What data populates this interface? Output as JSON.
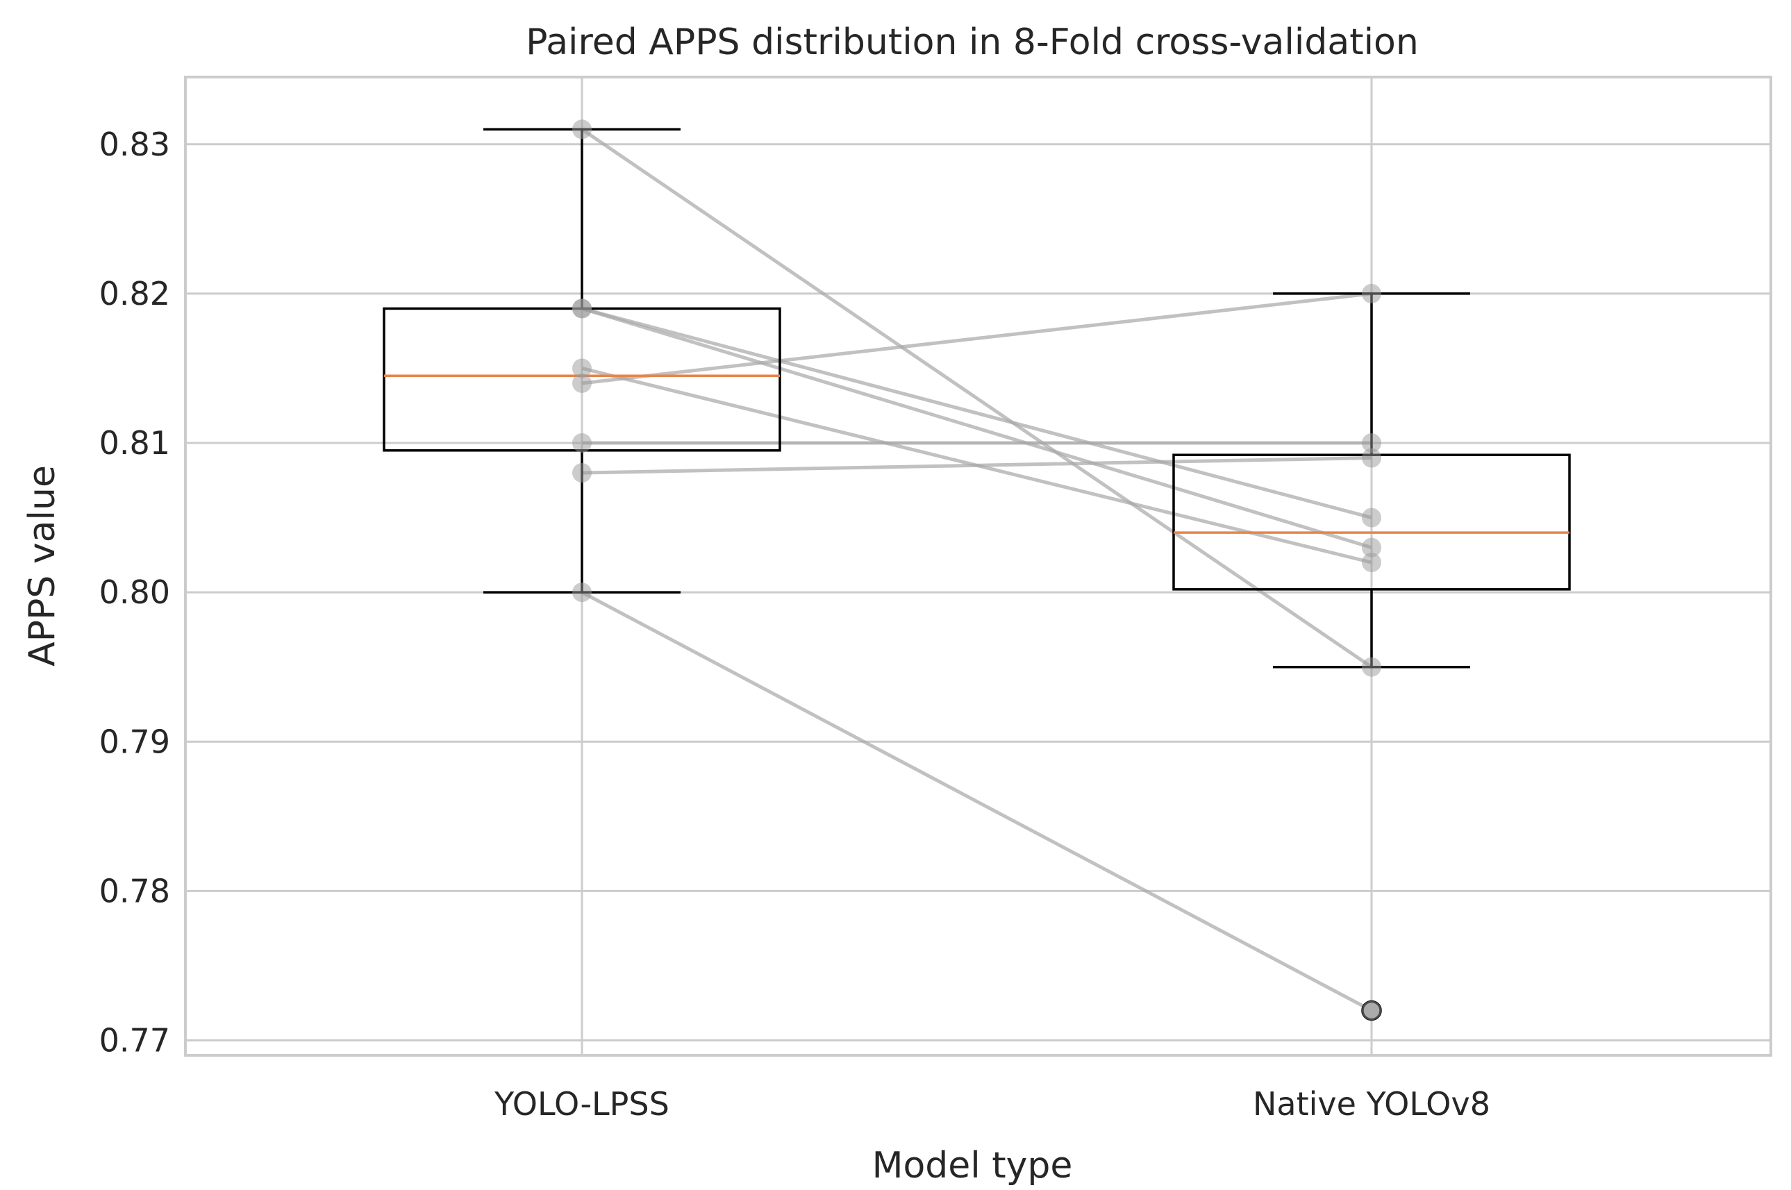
{
  "chart_data": {
    "type": "boxplot",
    "title": "Paired APPS distribution in 8-Fold cross-validation",
    "xlabel": "Model type",
    "ylabel": "APPS value",
    "categories": [
      "YOLO-LPSS",
      "Native YOLOv8"
    ],
    "ylim": [
      0.769,
      0.8345
    ],
    "yticks": [
      0.77,
      0.78,
      0.79,
      0.8,
      0.81,
      0.82,
      0.83
    ],
    "ytick_labels": [
      "0.77",
      "0.78",
      "0.79",
      "0.80",
      "0.81",
      "0.82",
      "0.83"
    ],
    "grid": true,
    "series": [
      {
        "name": "YOLO-LPSS",
        "values": [
          0.831,
          0.819,
          0.819,
          0.815,
          0.814,
          0.81,
          0.808,
          0.8
        ]
      },
      {
        "name": "Native YOLOv8",
        "values": [
          0.795,
          0.805,
          0.803,
          0.802,
          0.82,
          0.81,
          0.809,
          0.772
        ]
      }
    ],
    "boxes": [
      {
        "name": "YOLO-LPSS",
        "whisker_low": 0.8,
        "q1": 0.8095,
        "median": 0.8145,
        "q3": 0.819,
        "whisker_high": 0.831,
        "outliers": []
      },
      {
        "name": "Native YOLOv8",
        "whisker_low": 0.795,
        "q1": 0.8002,
        "median": 0.804,
        "q3": 0.8092,
        "whisker_high": 0.82,
        "outliers": [
          0.772
        ]
      }
    ],
    "colors": {
      "grid": "#cccccc",
      "spine": "#cccccc",
      "box": "#000000",
      "median": "#e8844a",
      "pair_line": "#a6a6a6",
      "point": "#999999",
      "outlier_face": "#bdbdbd"
    }
  }
}
